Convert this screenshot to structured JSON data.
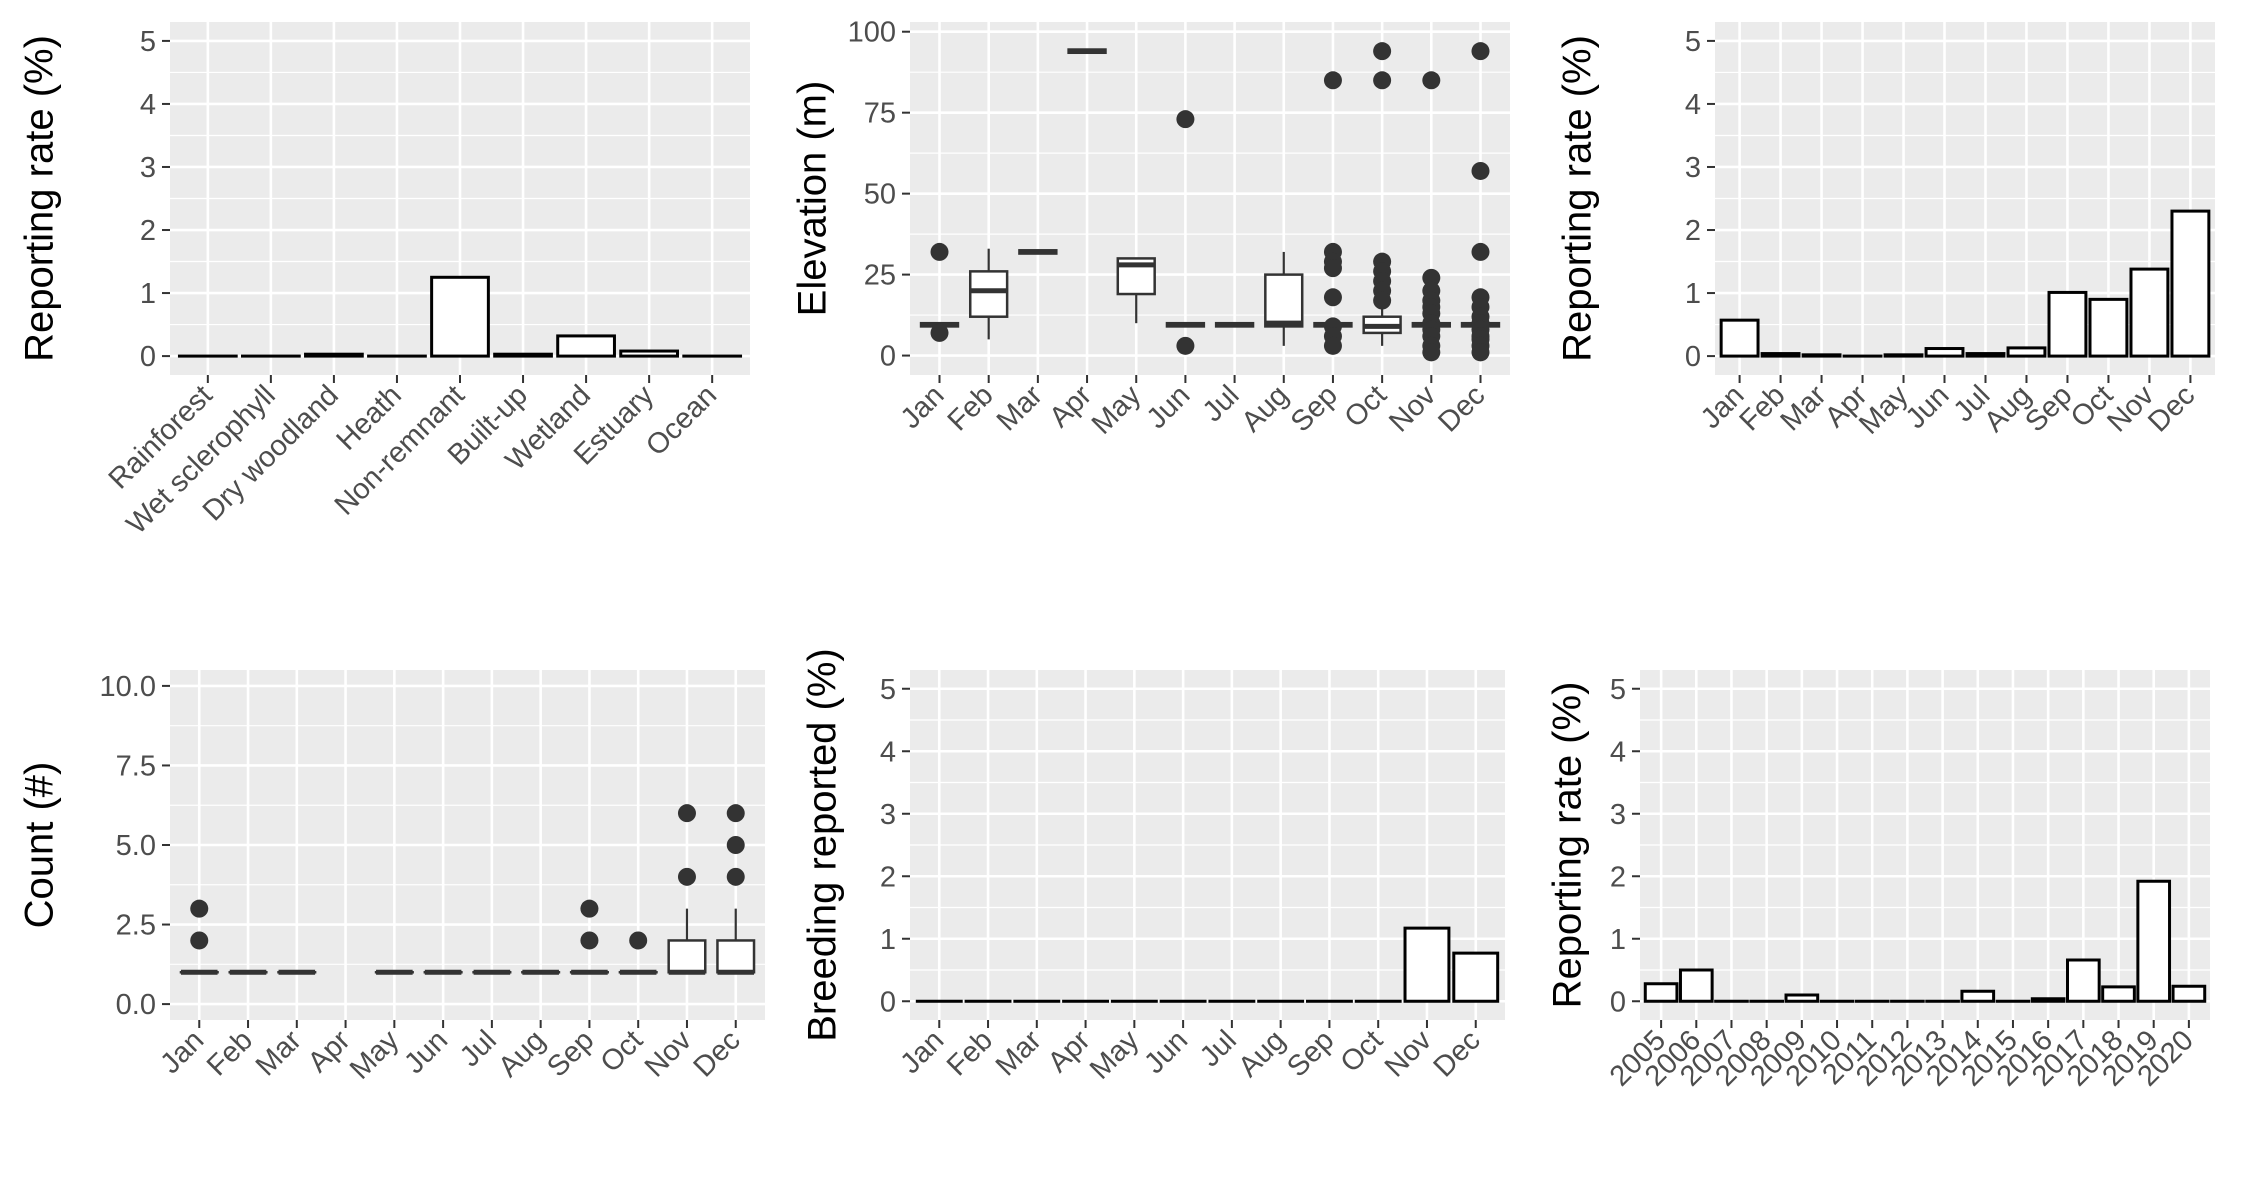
{
  "chart_data": [
    {
      "type": "bar",
      "ylabel": "Reporting rate (%)",
      "ylim": [
        0,
        5
      ],
      "yticks": [
        "0",
        "1",
        "2",
        "3",
        "4",
        "5"
      ],
      "categories": [
        "Rainforest",
        "Wet sclerophyll",
        "Dry woodland",
        "Heath",
        "Non-remnant",
        "Built-up",
        "Wetland",
        "Estuary",
        "Ocean"
      ],
      "values": [
        0,
        0,
        0.03,
        0,
        1.25,
        0.03,
        0.32,
        0.08,
        0
      ],
      "grid": true
    },
    {
      "type": "boxplot",
      "ylabel": "Elevation (m)",
      "ylim": [
        -6,
        103
      ],
      "yticks": [
        "0",
        "25",
        "50",
        "75",
        "100"
      ],
      "categories": [
        "Jan",
        "Feb",
        "Mar",
        "Apr",
        "May",
        "Jun",
        "Jul",
        "Aug",
        "Sep",
        "Oct",
        "Nov",
        "Dec"
      ],
      "boxes": [
        {
          "q1": 9,
          "median": 9.5,
          "q3": 10,
          "lo": 9,
          "hi": 10,
          "outliers": [
            32,
            7
          ]
        },
        {
          "q1": 12,
          "median": 20,
          "q3": 26,
          "lo": 5,
          "hi": 33,
          "outliers": []
        },
        {
          "q1": 31.5,
          "median": 32,
          "q3": 32.5,
          "lo": 31.5,
          "hi": 32.5,
          "outliers": []
        },
        {
          "q1": 93.5,
          "median": 94,
          "q3": 94.5,
          "lo": 93.5,
          "hi": 94.5,
          "outliers": []
        },
        {
          "q1": 19,
          "median": 28,
          "q3": 30,
          "lo": 10,
          "hi": 30,
          "outliers": []
        },
        {
          "q1": 9,
          "median": 9.5,
          "q3": 10,
          "lo": 9,
          "hi": 10,
          "outliers": [
            73,
            3
          ]
        },
        {
          "q1": 9,
          "median": 9.5,
          "q3": 10,
          "lo": 9,
          "hi": 10,
          "outliers": []
        },
        {
          "q1": 9,
          "median": 10,
          "q3": 25,
          "lo": 3,
          "hi": 32,
          "outliers": []
        },
        {
          "q1": 9,
          "median": 9.5,
          "q3": 10,
          "lo": 9,
          "hi": 10,
          "outliers": [
            85,
            32,
            29,
            27,
            18,
            9,
            6,
            3
          ]
        },
        {
          "q1": 7,
          "median": 9,
          "q3": 12,
          "lo": 3,
          "hi": 16,
          "outliers": [
            94,
            85,
            29,
            26,
            23,
            20,
            17
          ]
        },
        {
          "q1": 9,
          "median": 9.5,
          "q3": 10,
          "lo": 9,
          "hi": 10,
          "outliers": [
            85,
            24,
            20,
            17,
            15,
            13,
            10,
            8,
            6,
            3,
            1
          ]
        },
        {
          "q1": 9,
          "median": 9.5,
          "q3": 10,
          "lo": 9,
          "hi": 10,
          "outliers": [
            94,
            57,
            32,
            18,
            15,
            12,
            10,
            8,
            6,
            5,
            3,
            1
          ]
        }
      ],
      "grid": true
    },
    {
      "type": "bar",
      "ylabel": "Reporting rate (%)",
      "ylim": [
        0,
        5
      ],
      "yticks": [
        "0",
        "1",
        "2",
        "3",
        "4",
        "5"
      ],
      "categories": [
        "Jan",
        "Feb",
        "Mar",
        "Apr",
        "May",
        "Jun",
        "Jul",
        "Aug",
        "Sep",
        "Oct",
        "Nov",
        "Dec"
      ],
      "values": [
        0.57,
        0.04,
        0.02,
        0,
        0.02,
        0.12,
        0.04,
        0.13,
        1.01,
        0.9,
        1.38,
        2.3
      ],
      "grid": true
    },
    {
      "type": "boxplot",
      "ylabel": "Count (#)",
      "ylim": [
        -0.5,
        10.5
      ],
      "yticks": [
        "0.0",
        "2.5",
        "5.0",
        "7.5",
        "10.0"
      ],
      "categories": [
        "Jan",
        "Feb",
        "Mar",
        "Apr",
        "May",
        "Jun",
        "Jul",
        "Aug",
        "Sep",
        "Oct",
        "Nov",
        "Dec"
      ],
      "boxes": [
        {
          "q1": 1,
          "median": 1,
          "q3": 1,
          "lo": 1,
          "hi": 1,
          "outliers": [
            3,
            2
          ]
        },
        {
          "q1": 1,
          "median": 1,
          "q3": 1,
          "lo": 1,
          "hi": 1,
          "outliers": []
        },
        {
          "q1": 1,
          "median": 1,
          "q3": 1,
          "lo": 1,
          "hi": 1,
          "outliers": []
        },
        null,
        {
          "q1": 1,
          "median": 1,
          "q3": 1,
          "lo": 1,
          "hi": 1,
          "outliers": []
        },
        {
          "q1": 1,
          "median": 1,
          "q3": 1,
          "lo": 1,
          "hi": 1,
          "outliers": []
        },
        {
          "q1": 1,
          "median": 1,
          "q3": 1,
          "lo": 1,
          "hi": 1,
          "outliers": []
        },
        {
          "q1": 1,
          "median": 1,
          "q3": 1,
          "lo": 1,
          "hi": 1,
          "outliers": []
        },
        {
          "q1": 1,
          "median": 1,
          "q3": 1,
          "lo": 1,
          "hi": 1,
          "outliers": [
            3,
            2
          ]
        },
        {
          "q1": 1,
          "median": 1,
          "q3": 1,
          "lo": 1,
          "hi": 1,
          "outliers": [
            2
          ]
        },
        {
          "q1": 1,
          "median": 1,
          "q3": 2,
          "lo": 1,
          "hi": 3,
          "outliers": [
            6,
            4
          ]
        },
        {
          "q1": 1,
          "median": 1,
          "q3": 2,
          "lo": 1,
          "hi": 3,
          "outliers": [
            6,
            5,
            4
          ]
        }
      ],
      "grid": true
    },
    {
      "type": "bar",
      "ylabel": "Breeding reported (%)",
      "ylim": [
        0,
        5
      ],
      "yticks": [
        "0",
        "1",
        "2",
        "3",
        "4",
        "5"
      ],
      "categories": [
        "Jan",
        "Feb",
        "Mar",
        "Apr",
        "May",
        "Jun",
        "Jul",
        "Aug",
        "Sep",
        "Oct",
        "Nov",
        "Dec"
      ],
      "values": [
        0,
        0,
        0,
        0,
        0,
        0,
        0,
        0,
        0,
        0,
        1.17,
        0.77
      ],
      "grid": true
    },
    {
      "type": "bar",
      "ylabel": "Reporting rate (%)",
      "ylim": [
        0,
        5
      ],
      "yticks": [
        "0",
        "1",
        "2",
        "3",
        "4",
        "5"
      ],
      "categories": [
        "2005",
        "2006",
        "2007",
        "2008",
        "2009",
        "2010",
        "2011",
        "2012",
        "2013",
        "2014",
        "2015",
        "2016",
        "2017",
        "2018",
        "2019",
        "2020"
      ],
      "values": [
        0.28,
        0.5,
        0,
        0,
        0.1,
        0,
        0,
        0,
        0,
        0.16,
        0,
        0.04,
        0.66,
        0.23,
        1.92,
        0.24
      ],
      "grid": true
    }
  ]
}
